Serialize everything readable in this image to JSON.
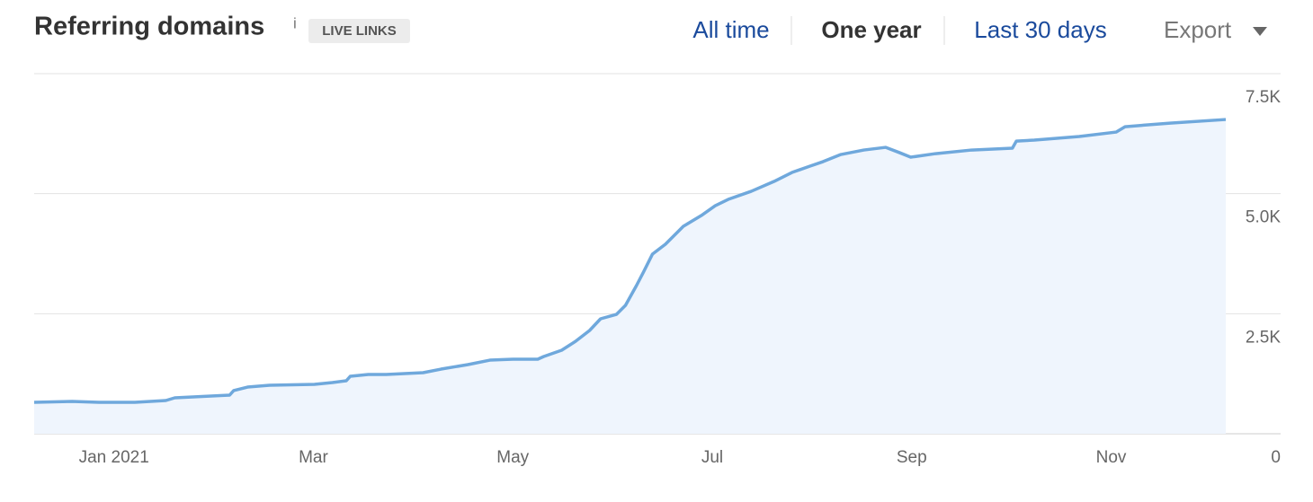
{
  "chart_data": {
    "type": "area",
    "title": "Referring domains",
    "x": [
      -0.8,
      -0.42,
      -0.15,
      0.21,
      0.52,
      0.61,
      1.16,
      1.2,
      1.34,
      1.56,
      2.01,
      2.19,
      2.33,
      2.37,
      2.55,
      2.73,
      3.1,
      3.28,
      3.55,
      3.77,
      4.0,
      4.25,
      4.31,
      4.49,
      4.63,
      4.77,
      4.88,
      5.04,
      5.13,
      5.24,
      5.31,
      5.4,
      5.53,
      5.71,
      5.89,
      6.03,
      6.16,
      6.39,
      6.62,
      6.8,
      6.98,
      7.11,
      7.29,
      7.52,
      7.74,
      7.88,
      7.99,
      8.24,
      8.6,
      9.01,
      9.05,
      9.23,
      9.68,
      10.05,
      10.14,
      10.59,
      11.15
    ],
    "values": [
      655,
      673,
      655,
      655,
      692,
      748,
      804,
      898,
      972,
      1010,
      1029,
      1066,
      1103,
      1197,
      1234,
      1234,
      1272,
      1346,
      1440,
      1533,
      1552,
      1552,
      1608,
      1739,
      1926,
      2151,
      2394,
      2487,
      2674,
      3086,
      3366,
      3740,
      3946,
      4320,
      4544,
      4750,
      4881,
      5049,
      5255,
      5442,
      5573,
      5666,
      5816,
      5909,
      5965,
      5853,
      5760,
      5834,
      5909,
      5947,
      6096,
      6115,
      6190,
      6283,
      6395,
      6470,
      6545
    ],
    "color": "#6fa8dc",
    "fill_color": "#eff5fd",
    "xlim": [
      -0.8,
      11.7
    ],
    "xticks": [
      {
        "value": 0,
        "label": "Jan 2021"
      },
      {
        "value": 2,
        "label": "Mar"
      },
      {
        "value": 4,
        "label": "May"
      },
      {
        "value": 6,
        "label": "Jul"
      },
      {
        "value": 8,
        "label": "Sep"
      },
      {
        "value": 10,
        "label": "Nov"
      }
    ],
    "ylim": [
      0,
      7500
    ],
    "yticks": [
      0,
      {
        "value": 2500,
        "label": "2.5K"
      },
      {
        "value": 5000,
        "label": "5.0K"
      },
      {
        "value": 7500,
        "label": "7.5K"
      }
    ],
    "grid": true
  },
  "controls": {
    "info": "i",
    "badge": "LIVE LINKS",
    "tabs": [
      {
        "label": "All time",
        "selected": false
      },
      {
        "label": "One year",
        "selected": true
      },
      {
        "label": "Last 30 days",
        "selected": false
      }
    ],
    "export": "Export"
  }
}
